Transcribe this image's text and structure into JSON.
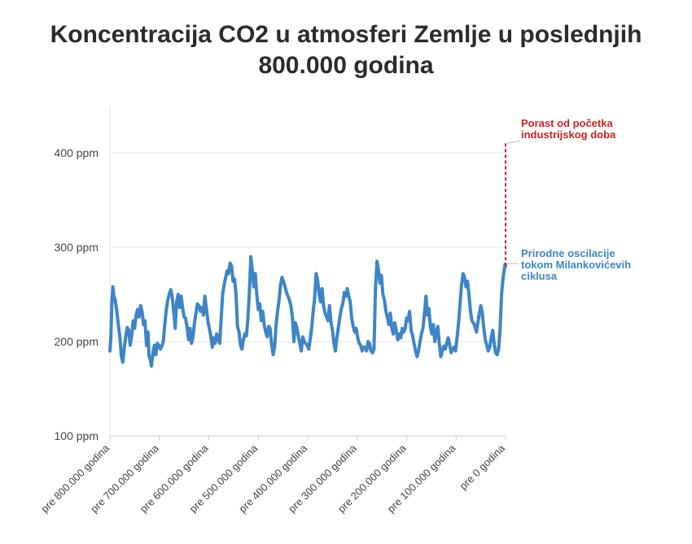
{
  "chart_data": {
    "type": "line",
    "title_lines": [
      "Koncentracija CO2 u atmosferi Zemlje u poslednjih",
      "800.000 godina"
    ],
    "xlabel": "",
    "ylabel": "",
    "y_ticks": [
      {
        "value": 100,
        "label": "100 ppm"
      },
      {
        "value": 200,
        "label": "200 ppm"
      },
      {
        "value": 300,
        "label": "300 ppm"
      },
      {
        "value": 400,
        "label": "400 ppm"
      }
    ],
    "x_ticks": [
      {
        "value": 800,
        "label": "pre 800.000 godina"
      },
      {
        "value": 700,
        "label": "pre 700.000 godina"
      },
      {
        "value": 600,
        "label": "pre 600.000 godina"
      },
      {
        "value": 500,
        "label": "pre 500.000 godina"
      },
      {
        "value": 400,
        "label": "pre 400.000 godina"
      },
      {
        "value": 300,
        "label": "pre 300.000 godina"
      },
      {
        "value": 200,
        "label": "pre 200.000 godina"
      },
      {
        "value": 100,
        "label": "pre 100.000 godina"
      },
      {
        "value": 0,
        "label": "pre 0 godina"
      }
    ],
    "xlim": [
      800,
      0
    ],
    "ylim": [
      100,
      450
    ],
    "grid": "horizontal",
    "series": [
      {
        "color": "#3d85c6",
        "x_unit": "thousand years ago",
        "points": [
          [
            800,
            190
          ],
          [
            798,
            205
          ],
          [
            796,
            240
          ],
          [
            794,
            258
          ],
          [
            792,
            248
          ],
          [
            789,
            243
          ],
          [
            786,
            232
          ],
          [
            783,
            218
          ],
          [
            780,
            205
          ],
          [
            777,
            185
          ],
          [
            774,
            178
          ],
          [
            771,
            193
          ],
          [
            768,
            205
          ],
          [
            765,
            215
          ],
          [
            762,
            212
          ],
          [
            759,
            196
          ],
          [
            756,
            206
          ],
          [
            753,
            222
          ],
          [
            750,
            214
          ],
          [
            747,
            228
          ],
          [
            744,
            234
          ],
          [
            741,
            226
          ],
          [
            738,
            238
          ],
          [
            735,
            232
          ],
          [
            732,
            218
          ],
          [
            729,
            222
          ],
          [
            726,
            196
          ],
          [
            723,
            210
          ],
          [
            721,
            185
          ],
          [
            718,
            180
          ],
          [
            716,
            174
          ],
          [
            713,
            188
          ],
          [
            710,
            196
          ],
          [
            707,
            186
          ],
          [
            704,
            198
          ],
          [
            701,
            196
          ],
          [
            698,
            192
          ],
          [
            695,
            195
          ],
          [
            692,
            200
          ],
          [
            689,
            218
          ],
          [
            686,
            234
          ],
          [
            683,
            244
          ],
          [
            680,
            250
          ],
          [
            677,
            255
          ],
          [
            674,
            248
          ],
          [
            671,
            232
          ],
          [
            668,
            214
          ],
          [
            665,
            242
          ],
          [
            662,
            250
          ],
          [
            659,
            236
          ],
          [
            656,
            248
          ],
          [
            653,
            236
          ],
          [
            650,
            226
          ],
          [
            647,
            225
          ],
          [
            644,
            215
          ],
          [
            641,
            202
          ],
          [
            638,
            214
          ],
          [
            635,
            198
          ],
          [
            632,
            205
          ],
          [
            629,
            220
          ],
          [
            626,
            230
          ],
          [
            623,
            240
          ],
          [
            620,
            238
          ],
          [
            617,
            232
          ],
          [
            614,
            236
          ],
          [
            611,
            228
          ],
          [
            608,
            248
          ],
          [
            605,
            235
          ],
          [
            602,
            222
          ],
          [
            599,
            214
          ],
          [
            596,
            206
          ],
          [
            593,
            194
          ],
          [
            590,
            204
          ],
          [
            587,
            198
          ],
          [
            584,
            208
          ],
          [
            581,
            204
          ],
          [
            578,
            198
          ],
          [
            575,
            225
          ],
          [
            572,
            250
          ],
          [
            569,
            260
          ],
          [
            566,
            268
          ],
          [
            563,
            275
          ],
          [
            560,
            272
          ],
          [
            557,
            283
          ],
          [
            554,
            280
          ],
          [
            551,
            264
          ],
          [
            548,
            266
          ],
          [
            545,
            250
          ],
          [
            542,
            216
          ],
          [
            539,
            210
          ],
          [
            536,
            196
          ],
          [
            533,
            192
          ],
          [
            530,
            202
          ],
          [
            527,
            208
          ],
          [
            524,
            206
          ],
          [
            521,
            224
          ],
          [
            518,
            252
          ],
          [
            515,
            290
          ],
          [
            512,
            275
          ],
          [
            509,
            258
          ],
          [
            506,
            272
          ],
          [
            503,
            250
          ],
          [
            500,
            234
          ],
          [
            497,
            240
          ],
          [
            494,
            222
          ],
          [
            491,
            232
          ],
          [
            488,
            218
          ],
          [
            485,
            210
          ],
          [
            482,
            205
          ],
          [
            479,
            216
          ],
          [
            476,
            214
          ],
          [
            473,
            196
          ],
          [
            470,
            186
          ],
          [
            467,
            194
          ],
          [
            464,
            218
          ],
          [
            461,
            232
          ],
          [
            458,
            244
          ],
          [
            455,
            260
          ],
          [
            452,
            268
          ],
          [
            449,
            264
          ],
          [
            446,
            258
          ],
          [
            443,
            252
          ],
          [
            440,
            248
          ],
          [
            437,
            244
          ],
          [
            434,
            238
          ],
          [
            431,
            226
          ],
          [
            428,
            200
          ],
          [
            425,
            220
          ],
          [
            422,
            215
          ],
          [
            419,
            205
          ],
          [
            416,
            198
          ],
          [
            413,
            190
          ],
          [
            410,
            205
          ],
          [
            407,
            200
          ],
          [
            404,
            198
          ],
          [
            401,
            196
          ],
          [
            398,
            192
          ],
          [
            395,
            202
          ],
          [
            392,
            215
          ],
          [
            389,
            232
          ],
          [
            386,
            246
          ],
          [
            383,
            272
          ],
          [
            380,
            265
          ],
          [
            377,
            250
          ],
          [
            374,
            242
          ],
          [
            371,
            256
          ],
          [
            368,
            238
          ],
          [
            365,
            230
          ],
          [
            362,
            226
          ],
          [
            359,
            222
          ],
          [
            356,
            238
          ],
          [
            353,
            220
          ],
          [
            350,
            212
          ],
          [
            347,
            198
          ],
          [
            344,
            190
          ],
          [
            341,
            204
          ],
          [
            338,
            215
          ],
          [
            335,
            226
          ],
          [
            332,
            235
          ],
          [
            329,
            240
          ],
          [
            326,
            252
          ],
          [
            323,
            248
          ],
          [
            320,
            256
          ],
          [
            317,
            248
          ],
          [
            314,
            242
          ],
          [
            311,
            224
          ],
          [
            308,
            216
          ],
          [
            305,
            210
          ],
          [
            302,
            214
          ],
          [
            299,
            204
          ],
          [
            296,
            198
          ],
          [
            293,
            196
          ],
          [
            290,
            190
          ],
          [
            287,
            194
          ],
          [
            284,
            194
          ],
          [
            281,
            190
          ],
          [
            278,
            200
          ],
          [
            275,
            198
          ],
          [
            272,
            190
          ],
          [
            269,
            188
          ],
          [
            266,
            192
          ],
          [
            263,
            256
          ],
          [
            260,
            285
          ],
          [
            257,
            276
          ],
          [
            254,
            262
          ],
          [
            251,
            270
          ],
          [
            248,
            250
          ],
          [
            245,
            244
          ],
          [
            242,
            232
          ],
          [
            239,
            226
          ],
          [
            236,
            218
          ],
          [
            233,
            230
          ],
          [
            230,
            214
          ],
          [
            227,
            208
          ],
          [
            224,
            220
          ],
          [
            221,
            212
          ],
          [
            218,
            202
          ],
          [
            215,
            208
          ],
          [
            212,
            204
          ],
          [
            209,
            214
          ],
          [
            206,
            210
          ],
          [
            203,
            214
          ],
          [
            200,
            225
          ],
          [
            197,
            222
          ],
          [
            194,
            232
          ],
          [
            191,
            212
          ],
          [
            188,
            206
          ],
          [
            185,
            198
          ],
          [
            182,
            190
          ],
          [
            179,
            184
          ],
          [
            176,
            190
          ],
          [
            173,
            200
          ],
          [
            170,
            208
          ],
          [
            167,
            214
          ],
          [
            164,
            230
          ],
          [
            161,
            248
          ],
          [
            158,
            228
          ],
          [
            155,
            235
          ],
          [
            152,
            215
          ],
          [
            149,
            208
          ],
          [
            146,
            218
          ],
          [
            143,
            200
          ],
          [
            140,
            210
          ],
          [
            137,
            216
          ],
          [
            134,
            198
          ],
          [
            131,
            184
          ],
          [
            128,
            190
          ],
          [
            125,
            195
          ],
          [
            122,
            192
          ],
          [
            119,
            198
          ],
          [
            116,
            204
          ],
          [
            113,
            196
          ],
          [
            110,
            188
          ],
          [
            107,
            192
          ],
          [
            104,
            194
          ],
          [
            101,
            190
          ],
          [
            98,
            205
          ],
          [
            95,
            220
          ],
          [
            92,
            240
          ],
          [
            89,
            260
          ],
          [
            86,
            272
          ],
          [
            83,
            268
          ],
          [
            80,
            258
          ],
          [
            77,
            264
          ],
          [
            74,
            250
          ],
          [
            71,
            232
          ],
          [
            68,
            222
          ],
          [
            65,
            220
          ],
          [
            62,
            216
          ],
          [
            59,
            210
          ],
          [
            56,
            220
          ],
          [
            53,
            230
          ],
          [
            50,
            238
          ],
          [
            47,
            230
          ],
          [
            44,
            214
          ],
          [
            41,
            202
          ],
          [
            38,
            196
          ],
          [
            35,
            190
          ],
          [
            32,
            194
          ],
          [
            29,
            204
          ],
          [
            26,
            212
          ],
          [
            23,
            198
          ],
          [
            20,
            188
          ],
          [
            17,
            186
          ],
          [
            14,
            192
          ],
          [
            11,
            214
          ],
          [
            8,
            250
          ],
          [
            5,
            268
          ],
          [
            3,
            275
          ],
          [
            1,
            282
          ],
          [
            0,
            280
          ]
        ]
      }
    ],
    "annotations": [
      {
        "lines": [
          "Porast od početka",
          "industrijskog doba"
        ],
        "color": "#cc2222",
        "style": "dashed",
        "from_y": 280,
        "to_y": 410,
        "at_x": 0
      },
      {
        "lines": [
          "Prirodne oscilacije",
          "tokom Milankovićevih",
          "ciklusa"
        ],
        "color": "#3d85c6",
        "at_y": 280
      }
    ]
  }
}
